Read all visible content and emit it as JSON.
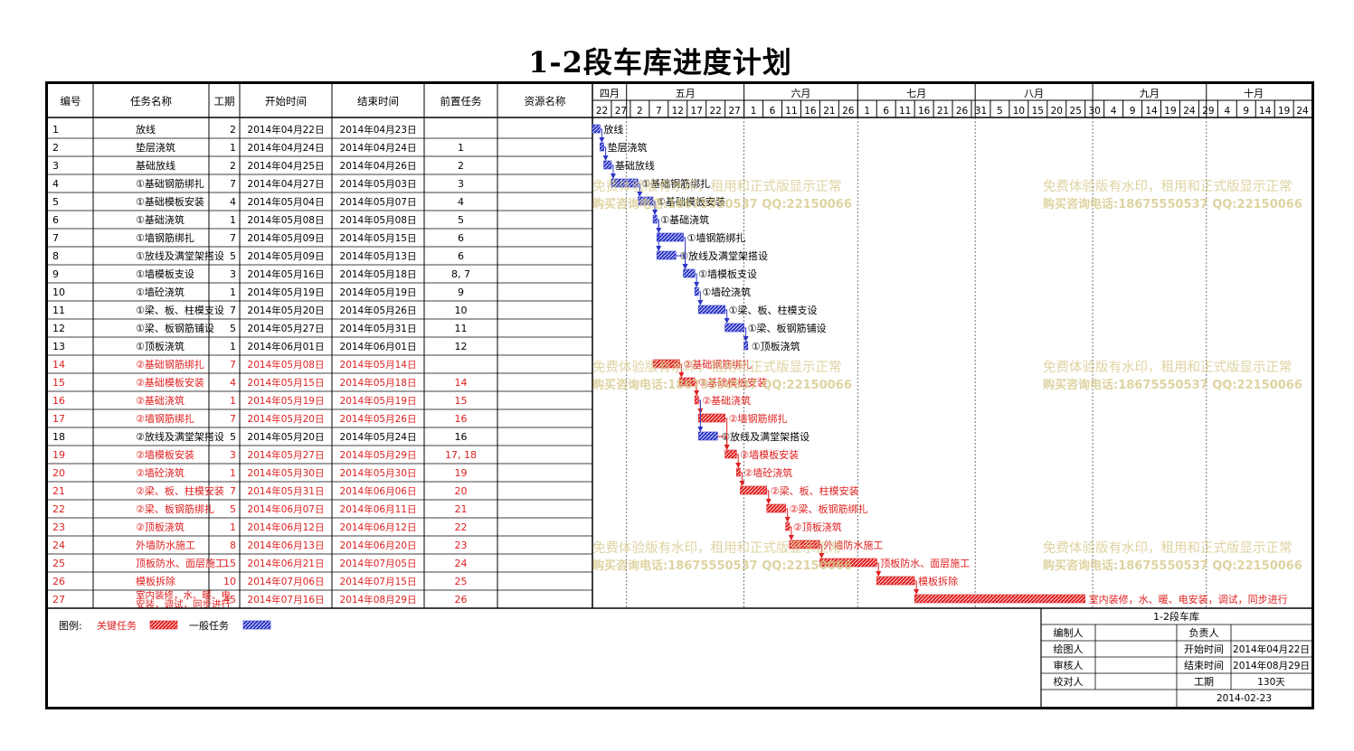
{
  "title": "1-2段车库进度计划",
  "columns": [
    "编号",
    "任务名称",
    "工期",
    "开始时间",
    "结束时间",
    "前置任务",
    "资源名称"
  ],
  "tasks": [
    {
      "id": "1",
      "name": "放线",
      "dur": "2",
      "start": "2014年04月22日",
      "end": "2014年04月23日",
      "pred": "",
      "critical": false
    },
    {
      "id": "2",
      "name": "垫层浇筑",
      "dur": "1",
      "start": "2014年04月24日",
      "end": "2014年04月24日",
      "pred": "1",
      "critical": false
    },
    {
      "id": "3",
      "name": "基础放线",
      "dur": "2",
      "start": "2014年04月25日",
      "end": "2014年04月26日",
      "pred": "2",
      "critical": false
    },
    {
      "id": "4",
      "name": "①基础钢筋绑扎",
      "dur": "7",
      "start": "2014年04月27日",
      "end": "2014年05月03日",
      "pred": "3",
      "critical": false
    },
    {
      "id": "5",
      "name": "①基础模板安装",
      "dur": "4",
      "start": "2014年05月04日",
      "end": "2014年05月07日",
      "pred": "4",
      "critical": false
    },
    {
      "id": "6",
      "name": "①基础浇筑",
      "dur": "1",
      "start": "2014年05月08日",
      "end": "2014年05月08日",
      "pred": "5",
      "critical": false
    },
    {
      "id": "7",
      "name": "①墙钢筋绑扎",
      "dur": "7",
      "start": "2014年05月09日",
      "end": "2014年05月15日",
      "pred": "6",
      "critical": false
    },
    {
      "id": "8",
      "name": "①放线及满堂架搭设",
      "dur": "5",
      "start": "2014年05月09日",
      "end": "2014年05月13日",
      "pred": "6",
      "critical": false
    },
    {
      "id": "9",
      "name": "①墙模板支设",
      "dur": "3",
      "start": "2014年05月16日",
      "end": "2014年05月18日",
      "pred": "8, 7",
      "critical": false
    },
    {
      "id": "10",
      "name": "①墙砼浇筑",
      "dur": "1",
      "start": "2014年05月19日",
      "end": "2014年05月19日",
      "pred": "9",
      "critical": false
    },
    {
      "id": "11",
      "name": "①梁、板、柱模支设",
      "dur": "7",
      "start": "2014年05月20日",
      "end": "2014年05月26日",
      "pred": "10",
      "critical": false
    },
    {
      "id": "12",
      "name": "①梁、板钢筋铺设",
      "dur": "5",
      "start": "2014年05月27日",
      "end": "2014年05月31日",
      "pred": "11",
      "critical": false
    },
    {
      "id": "13",
      "name": "①顶板浇筑",
      "dur": "1",
      "start": "2014年06月01日",
      "end": "2014年06月01日",
      "pred": "12",
      "critical": false
    },
    {
      "id": "14",
      "name": "②基础钢筋绑扎",
      "dur": "7",
      "start": "2014年05月08日",
      "end": "2014年05月14日",
      "pred": "",
      "critical": true
    },
    {
      "id": "15",
      "name": "②基础模板安装",
      "dur": "4",
      "start": "2014年05月15日",
      "end": "2014年05月18日",
      "pred": "14",
      "critical": true
    },
    {
      "id": "16",
      "name": "②基础浇筑",
      "dur": "1",
      "start": "2014年05月19日",
      "end": "2014年05月19日",
      "pred": "15",
      "critical": true
    },
    {
      "id": "17",
      "name": "②墙钢筋绑扎",
      "dur": "7",
      "start": "2014年05月20日",
      "end": "2014年05月26日",
      "pred": "16",
      "critical": true
    },
    {
      "id": "18",
      "name": "②放线及满堂架搭设",
      "dur": "5",
      "start": "2014年05月20日",
      "end": "2014年05月24日",
      "pred": "16",
      "critical": false
    },
    {
      "id": "19",
      "name": "②墙模板安装",
      "dur": "3",
      "start": "2014年05月27日",
      "end": "2014年05月29日",
      "pred": "17, 18",
      "critical": true
    },
    {
      "id": "20",
      "name": "②墙砼浇筑",
      "dur": "1",
      "start": "2014年05月30日",
      "end": "2014年05月30日",
      "pred": "19",
      "critical": true
    },
    {
      "id": "21",
      "name": "②梁、板、柱模安装",
      "dur": "7",
      "start": "2014年05月31日",
      "end": "2014年06月06日",
      "pred": "20",
      "critical": true
    },
    {
      "id": "22",
      "name": "②梁、板钢筋绑扎",
      "dur": "5",
      "start": "2014年06月07日",
      "end": "2014年06月11日",
      "pred": "21",
      "critical": true
    },
    {
      "id": "23",
      "name": "②顶板浇筑",
      "dur": "1",
      "start": "2014年06月12日",
      "end": "2014年06月12日",
      "pred": "22",
      "critical": true
    },
    {
      "id": "24",
      "name": "外墙防水施工",
      "dur": "8",
      "start": "2014年06月13日",
      "end": "2014年06月20日",
      "pred": "23",
      "critical": true
    },
    {
      "id": "25",
      "name": "顶板防水、面层施工",
      "dur": "15",
      "start": "2014年06月21日",
      "end": "2014年07月05日",
      "pred": "24",
      "critical": true
    },
    {
      "id": "26",
      "name": "模板拆除",
      "dur": "10",
      "start": "2014年07月06日",
      "end": "2014年07月15日",
      "pred": "25",
      "critical": true
    },
    {
      "id": "27",
      "name": "室内装修，水、暖、电安装，调试，同步进行",
      "dur": "45",
      "start": "2014年07月16日",
      "end": "2014年08月29日",
      "pred": "26",
      "critical": true
    }
  ],
  "timeline": {
    "months": [
      {
        "label": "四月",
        "start_day": 0,
        "end_day": 9
      },
      {
        "label": "五月",
        "start_day": 9,
        "end_day": 40
      },
      {
        "label": "六月",
        "start_day": 40,
        "end_day": 70
      },
      {
        "label": "七月",
        "start_day": 70,
        "end_day": 101
      },
      {
        "label": "八月",
        "start_day": 101,
        "end_day": 132
      },
      {
        "label": "九月",
        "start_day": 132,
        "end_day": 162
      },
      {
        "label": "十月",
        "start_day": 162,
        "end_day": 187
      }
    ],
    "ticks": [
      "22",
      "27",
      "2",
      "7",
      "12",
      "17",
      "22",
      "27",
      "1",
      "6",
      "11",
      "16",
      "21",
      "26",
      "1",
      "6",
      "11",
      "16",
      "21",
      "26",
      "31",
      "5",
      "10",
      "15",
      "20",
      "25",
      "30",
      "4",
      "9",
      "14",
      "19",
      "24",
      "29",
      "4",
      "9",
      "14",
      "19",
      "24"
    ]
  },
  "legend": {
    "label": "图例:",
    "critical": "关键任务",
    "normal": "一般任务"
  },
  "watermark": {
    "line1": "免费体验版有水印，租用和正式版显示正常",
    "line2": "购买咨询电话:18675550537 QQ:22150066"
  },
  "info": {
    "project": "1-2段车库",
    "editor_label": "编制人",
    "lead_label": "负责人",
    "drawer_label": "绘图人",
    "start_label": "开始时间",
    "start_value": "2014年04月22日",
    "reviewer_label": "审核人",
    "end_label": "结束时间",
    "end_value": "2014年08月29日",
    "checker_label": "校对人",
    "dur_label": "工期",
    "dur_value": "130天",
    "date": "2014-02-23"
  },
  "colors": {
    "critical": "#e02020",
    "normal": "#2b35c8",
    "critical_text": "#e02020",
    "watermark": "#d6c98a"
  },
  "chart_data": {
    "type": "gantt",
    "title": "1-2段车库进度计划",
    "x_axis_start": "2014-04-22",
    "tasks_ref": "tasks"
  }
}
